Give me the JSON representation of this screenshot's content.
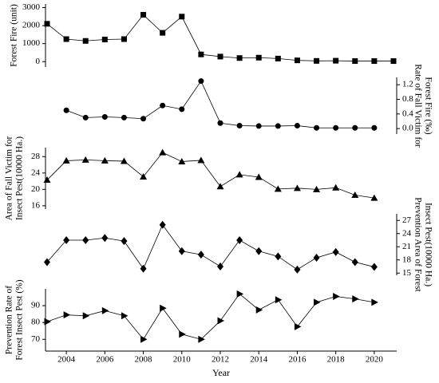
{
  "chart_data": [
    {
      "type": "line",
      "y_label": [
        "Forest Fire (unit)"
      ],
      "y_axis": "left",
      "marker": "square",
      "x": [
        2003,
        2004,
        2005,
        2006,
        2007,
        2008,
        2009,
        2010,
        2011,
        2012,
        2013,
        2014,
        2015,
        2016,
        2017,
        2018,
        2019,
        2020,
        2021
      ],
      "series": [
        {
          "color": "#000000",
          "values": [
            2100,
            1250,
            1150,
            1230,
            1250,
            2600,
            1600,
            2500,
            400,
            280,
            200,
            220,
            170,
            70,
            40,
            50,
            30,
            30,
            30
          ]
        }
      ],
      "xlim": [
        2003,
        2021
      ],
      "ylim": [
        -300,
        3200
      ],
      "yticks": [
        0,
        1000,
        2000,
        3000
      ]
    },
    {
      "type": "line",
      "y_label": [
        "Rate of Fall Victim for",
        "Forest Fire (‰)"
      ],
      "y_axis": "right",
      "marker": "circle",
      "x": [
        2003,
        2004,
        2005,
        2006,
        2007,
        2008,
        2009,
        2010,
        2011,
        2012,
        2013,
        2014,
        2015,
        2016,
        2017,
        2018,
        2019,
        2020,
        2021
      ],
      "series": [
        {
          "color": "#000000",
          "values": [
            null,
            0.5,
            0.3,
            0.32,
            0.3,
            0.27,
            0.63,
            0.53,
            1.3,
            0.15,
            0.08,
            0.07,
            0.07,
            0.08,
            0.02,
            0.02,
            0.02,
            0.02,
            null
          ]
        }
      ],
      "xlim": [
        2003,
        2021
      ],
      "ylim": [
        -0.15,
        1.4
      ],
      "yticks": [
        {
          "value": 0,
          "label": "0.0"
        },
        0.4,
        0.8,
        1.2
      ]
    },
    {
      "type": "line",
      "y_label": [
        "Area of Fall Victim for",
        "Insect Pest(10000 Ha.)"
      ],
      "y_axis": "left",
      "marker": "triangle-up",
      "x": [
        2003,
        2004,
        2005,
        2006,
        2007,
        2008,
        2009,
        2010,
        2011,
        2012,
        2013,
        2014,
        2015,
        2016,
        2017,
        2018,
        2019,
        2020,
        2021
      ],
      "series": [
        {
          "color": "#000000",
          "values": [
            22.3,
            27,
            27.2,
            27,
            26.9,
            23.1,
            29,
            26.8,
            27.1,
            20.7,
            23.6,
            23,
            20.1,
            20.3,
            20,
            20.4,
            18.6,
            17.9,
            null
          ]
        }
      ],
      "xlim": [
        2003,
        2021
      ],
      "ylim": [
        15.2,
        30.2
      ],
      "yticks": [
        16,
        20,
        24,
        28
      ]
    },
    {
      "type": "line",
      "y_label": [
        "Prevention Area of Forest",
        "Insect Pest(10000 Ha.)"
      ],
      "y_axis": "right",
      "marker": "diamond",
      "x": [
        2003,
        2004,
        2005,
        2006,
        2007,
        2008,
        2009,
        2010,
        2011,
        2012,
        2013,
        2014,
        2015,
        2016,
        2017,
        2018,
        2019,
        2020,
        2021
      ],
      "series": [
        {
          "color": "#000000",
          "values": [
            17.5,
            22.5,
            22.5,
            23,
            22.3,
            16,
            26,
            20,
            19.2,
            16.5,
            22.5,
            20,
            18.8,
            15.8,
            18.5,
            19.8,
            17.5,
            16.4,
            null
          ]
        }
      ],
      "xlim": [
        2003,
        2021
      ],
      "ylim": [
        14.5,
        28.5
      ],
      "yticks": [
        15,
        18,
        21,
        24,
        27
      ]
    },
    {
      "type": "line",
      "y_label": [
        "Prevention Rate of",
        "Forest Insect Pest (%)"
      ],
      "y_axis": "left",
      "marker": "triangle-right",
      "x": [
        2003,
        2004,
        2005,
        2006,
        2007,
        2008,
        2009,
        2010,
        2011,
        2012,
        2013,
        2014,
        2015,
        2016,
        2017,
        2018,
        2019,
        2020,
        2021
      ],
      "series": [
        {
          "color": "#000000",
          "values": [
            80.5,
            84.5,
            84,
            87,
            84,
            70,
            88.5,
            73,
            70,
            81,
            97,
            87.5,
            93.5,
            77.5,
            92,
            95.5,
            94,
            92,
            null
          ]
        }
      ],
      "xlim": [
        2003,
        2021
      ],
      "ylim": [
        63,
        100
      ],
      "yticks": [
        70,
        80,
        90
      ],
      "x_label": "Year",
      "xticks": [
        2004,
        2006,
        2008,
        2010,
        2012,
        2014,
        2016,
        2018,
        2020
      ]
    }
  ]
}
